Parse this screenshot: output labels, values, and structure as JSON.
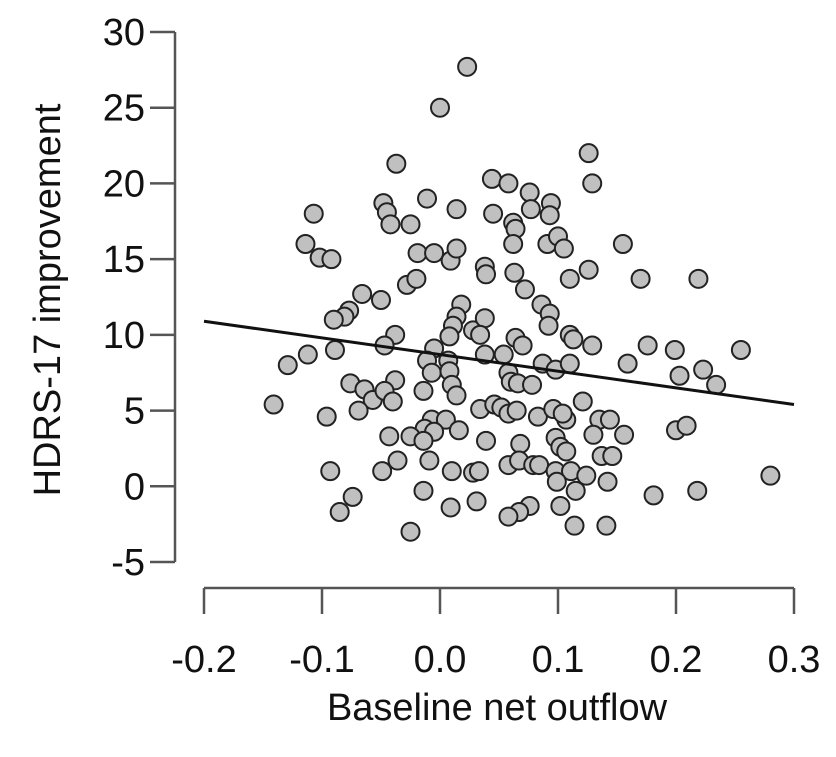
{
  "chart_data": {
    "type": "scatter",
    "title": "",
    "xlabel": "Baseline net outflow",
    "ylabel": "HDRS-17 improvement",
    "xlim": [
      -0.2,
      0.3
    ],
    "ylim": [
      -5,
      30
    ],
    "xticks": [
      -0.2,
      -0.1,
      0.0,
      0.1,
      0.2,
      0.3
    ],
    "xtick_labels": [
      "-0.2",
      "-0.1",
      "0.0",
      "0.1",
      "0.2",
      "0.3"
    ],
    "yticks": [
      30,
      25,
      20,
      15,
      10,
      5,
      0,
      -5
    ],
    "ytick_labels": [
      "30",
      "25",
      "20",
      "15",
      "10",
      "5",
      "0",
      "-5"
    ],
    "grid": false,
    "marker_color": "#c0c0c0",
    "regression_line": {
      "x": [
        -0.2,
        0.3
      ],
      "y": [
        10.9,
        5.4
      ]
    },
    "points": [
      [
        0.023,
        27.7
      ],
      [
        0.0,
        25.0
      ],
      [
        -0.037,
        21.3
      ],
      [
        0.126,
        22.0
      ],
      [
        0.129,
        20.0
      ],
      [
        0.044,
        20.3
      ],
      [
        0.058,
        20.0
      ],
      [
        0.076,
        19.4
      ],
      [
        0.094,
        18.7
      ],
      [
        0.093,
        17.9
      ],
      [
        0.077,
        18.3
      ],
      [
        0.045,
        18.0
      ],
      [
        -0.011,
        19.0
      ],
      [
        0.014,
        18.3
      ],
      [
        -0.048,
        18.7
      ],
      [
        -0.045,
        18.1
      ],
      [
        -0.042,
        17.3
      ],
      [
        -0.025,
        17.3
      ],
      [
        -0.107,
        18.0
      ],
      [
        -0.114,
        16.0
      ],
      [
        -0.102,
        15.1
      ],
      [
        -0.092,
        15.0
      ],
      [
        0.062,
        17.4
      ],
      [
        0.064,
        17.0
      ],
      [
        0.062,
        16.0
      ],
      [
        0.091,
        16.0
      ],
      [
        0.1,
        16.5
      ],
      [
        0.105,
        15.7
      ],
      [
        0.155,
        16.0
      ],
      [
        -0.019,
        15.4
      ],
      [
        -0.005,
        15.4
      ],
      [
        0.009,
        14.9
      ],
      [
        0.014,
        15.7
      ],
      [
        0.038,
        14.5
      ],
      [
        0.039,
        14.0
      ],
      [
        0.063,
        14.1
      ],
      [
        0.126,
        14.3
      ],
      [
        0.11,
        13.7
      ],
      [
        0.17,
        13.7
      ],
      [
        0.219,
        13.7
      ],
      [
        -0.028,
        13.3
      ],
      [
        -0.02,
        13.7
      ],
      [
        0.072,
        13.0
      ],
      [
        -0.066,
        12.7
      ],
      [
        -0.05,
        12.3
      ],
      [
        -0.077,
        11.6
      ],
      [
        -0.081,
        11.2
      ],
      [
        -0.09,
        11.0
      ],
      [
        0.018,
        12.0
      ],
      [
        0.014,
        11.2
      ],
      [
        0.011,
        10.6
      ],
      [
        0.008,
        9.9
      ],
      [
        0.028,
        10.3
      ],
      [
        0.038,
        11.1
      ],
      [
        0.034,
        10.0
      ],
      [
        0.086,
        12.0
      ],
      [
        0.093,
        11.4
      ],
      [
        0.092,
        10.6
      ],
      [
        0.11,
        10.0
      ],
      [
        0.113,
        9.7
      ],
      [
        0.129,
        9.3
      ],
      [
        0.176,
        9.3
      ],
      [
        0.199,
        9.0
      ],
      [
        0.255,
        9.0
      ],
      [
        -0.038,
        10.0
      ],
      [
        -0.047,
        9.3
      ],
      [
        -0.089,
        9.0
      ],
      [
        -0.112,
        8.7
      ],
      [
        -0.129,
        8.0
      ],
      [
        -0.005,
        9.1
      ],
      [
        -0.011,
        8.3
      ],
      [
        0.007,
        8.3
      ],
      [
        0.038,
        8.7
      ],
      [
        0.054,
        8.7
      ],
      [
        0.064,
        9.8
      ],
      [
        0.07,
        9.3
      ],
      [
        0.087,
        8.1
      ],
      [
        0.098,
        7.7
      ],
      [
        0.11,
        8.1
      ],
      [
        0.159,
        8.1
      ],
      [
        0.203,
        7.3
      ],
      [
        0.223,
        7.7
      ],
      [
        0.234,
        6.7
      ],
      [
        -0.007,
        7.5
      ],
      [
        0.008,
        7.6
      ],
      [
        0.01,
        6.7
      ],
      [
        0.014,
        6.0
      ],
      [
        -0.014,
        6.3
      ],
      [
        0.058,
        7.5
      ],
      [
        0.06,
        6.9
      ],
      [
        0.066,
        6.8
      ],
      [
        0.078,
        6.7
      ],
      [
        -0.076,
        6.8
      ],
      [
        -0.064,
        6.4
      ],
      [
        -0.057,
        5.7
      ],
      [
        -0.038,
        7.0
      ],
      [
        -0.047,
        6.3
      ],
      [
        -0.04,
        5.6
      ],
      [
        -0.069,
        5.0
      ],
      [
        -0.096,
        4.6
      ],
      [
        -0.141,
        5.4
      ],
      [
        0.121,
        5.6
      ],
      [
        0.034,
        5.1
      ],
      [
        0.046,
        5.4
      ],
      [
        0.052,
        5.2
      ],
      [
        0.058,
        4.8
      ],
      [
        0.065,
        5.0
      ],
      [
        0.083,
        4.6
      ],
      [
        0.096,
        5.1
      ],
      [
        0.107,
        4.4
      ],
      [
        0.104,
        4.8
      ],
      [
        0.135,
        4.4
      ],
      [
        0.144,
        4.4
      ],
      [
        0.13,
        3.4
      ],
      [
        0.156,
        3.4
      ],
      [
        0.2,
        3.7
      ],
      [
        0.209,
        4.0
      ],
      [
        -0.007,
        4.4
      ],
      [
        0.005,
        4.4
      ],
      [
        -0.013,
        3.8
      ],
      [
        -0.025,
        3.3
      ],
      [
        -0.043,
        3.3
      ],
      [
        -0.005,
        3.6
      ],
      [
        0.016,
        3.7
      ],
      [
        -0.014,
        3.0
      ],
      [
        0.039,
        3.0
      ],
      [
        0.068,
        2.8
      ],
      [
        0.098,
        3.2
      ],
      [
        0.102,
        2.6
      ],
      [
        0.107,
        2.3
      ],
      [
        0.137,
        2.0
      ],
      [
        0.146,
        2.0
      ],
      [
        -0.036,
        1.7
      ],
      [
        -0.049,
        1.0
      ],
      [
        -0.009,
        1.7
      ],
      [
        0.01,
        1.0
      ],
      [
        0.028,
        0.9
      ],
      [
        0.033,
        1.0
      ],
      [
        0.058,
        1.4
      ],
      [
        0.067,
        1.7
      ],
      [
        0.079,
        1.4
      ],
      [
        0.084,
        1.4
      ],
      [
        0.098,
        1.0
      ],
      [
        0.111,
        1.0
      ],
      [
        0.099,
        0.3
      ],
      [
        0.124,
        0.7
      ],
      [
        0.142,
        0.3
      ],
      [
        -0.093,
        1.0
      ],
      [
        0.28,
        0.7
      ],
      [
        -0.014,
        -0.3
      ],
      [
        0.115,
        -0.3
      ],
      [
        0.181,
        -0.6
      ],
      [
        0.218,
        -0.3
      ],
      [
        -0.074,
        -0.7
      ],
      [
        -0.085,
        -1.7
      ],
      [
        0.009,
        -1.4
      ],
      [
        0.031,
        -1.0
      ],
      [
        0.076,
        -1.3
      ],
      [
        0.067,
        -1.7
      ],
      [
        0.058,
        -2.0
      ],
      [
        0.102,
        -1.3
      ],
      [
        0.114,
        -2.6
      ],
      [
        0.141,
        -2.6
      ],
      [
        -0.025,
        -3.0
      ]
    ]
  }
}
